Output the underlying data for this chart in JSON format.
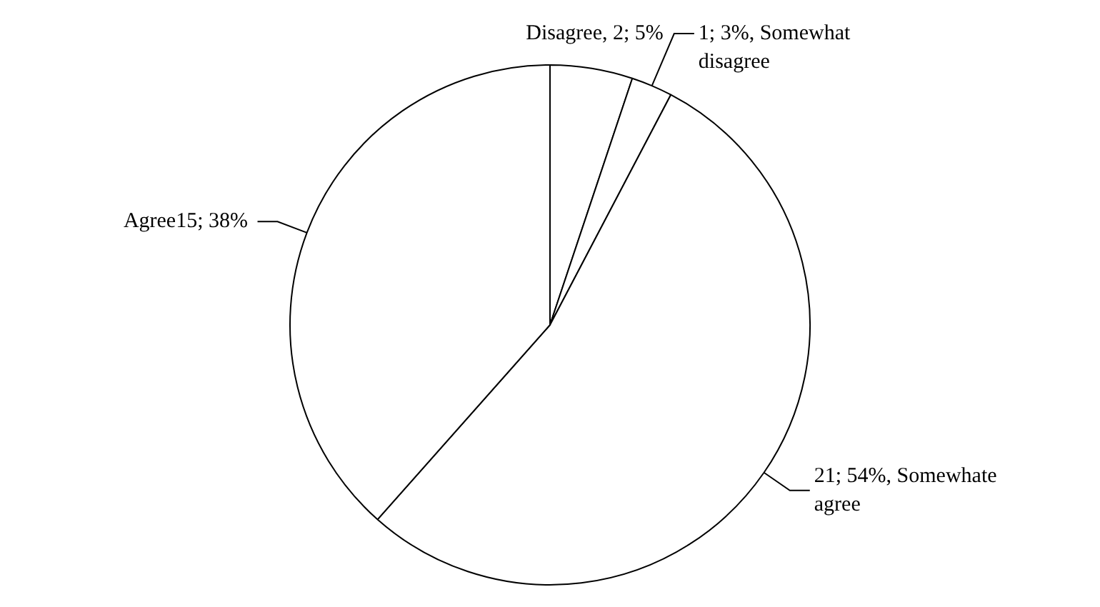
{
  "chart_data": {
    "type": "pie",
    "categories": [
      "Disagree",
      "Somewhat disagree",
      "Somewhate agree",
      "Agree"
    ],
    "values": [
      2,
      1,
      21,
      15
    ],
    "colors": [
      "#ffffff",
      "#ffffff",
      "#ffffff",
      "#ffffff"
    ],
    "value_labels": [
      ", 2; 5%",
      "1; 3%,",
      "21; 54%,",
      "15; 38%"
    ],
    "legend": false
  }
}
